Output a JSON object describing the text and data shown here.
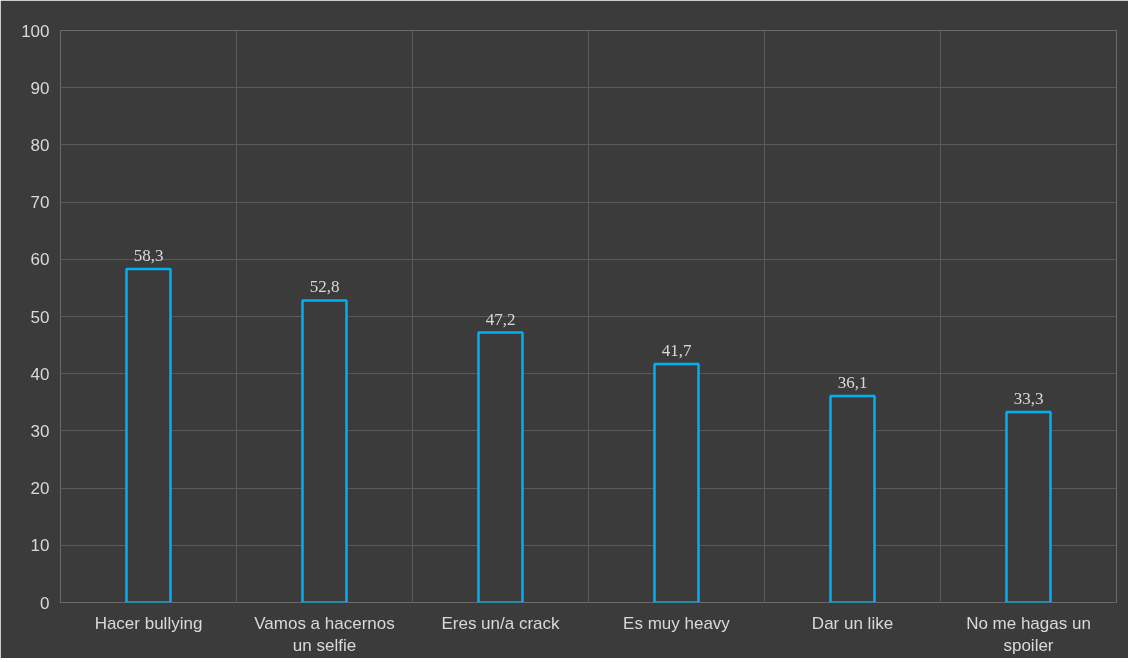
{
  "chart_data": {
    "type": "bar",
    "categories": [
      "Hacer bullying",
      "Vamos a hacernos un selfie",
      "Eres un/a crack",
      "Es muy heavy",
      "Dar un like",
      "No me hagas un spoiler"
    ],
    "values": [
      58.3,
      52.8,
      47.2,
      41.7,
      36.1,
      33.3
    ],
    "value_labels": [
      "58,3",
      "52,8",
      "47,2",
      "41,7",
      "36,1",
      "33,3"
    ],
    "color": "#00b0f0",
    "ylim": [
      0,
      100
    ],
    "yticks": [
      0,
      10,
      20,
      30,
      40,
      50,
      60,
      70,
      80,
      90,
      100
    ],
    "grid": true
  }
}
